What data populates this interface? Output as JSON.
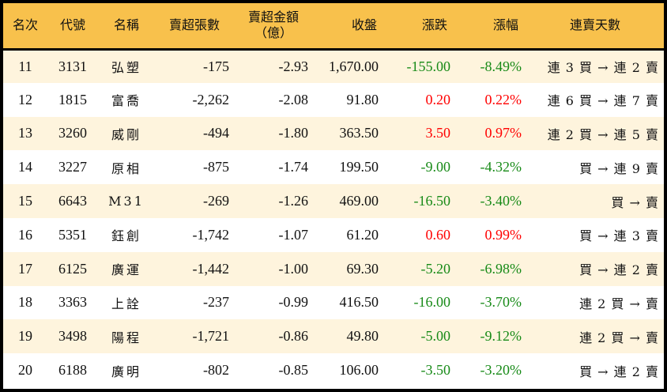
{
  "headers": {
    "rank": "名次",
    "code": "代號",
    "name": "名稱",
    "sell_sheets": "賣超張數",
    "sell_amount": "賣超金額",
    "sell_amount_unit": "（億）",
    "close": "收盤",
    "change": "漲跌",
    "change_pct": "漲幅",
    "streak": "連賣天數"
  },
  "colors": {
    "header_bg": "#F8C14C",
    "row_alt": "#FEF4DD",
    "up": "#FF0000",
    "down": "#178A17"
  },
  "rows": [
    {
      "rank": "11",
      "code": "3131",
      "name": "弘塑",
      "sheets": "-175",
      "amount": "-2.93",
      "close": "1,670.00",
      "change": "-155.00",
      "pct": "-8.49%",
      "dir": "down",
      "streak": "連 3 買 → 連 2 賣"
    },
    {
      "rank": "12",
      "code": "1815",
      "name": "富喬",
      "sheets": "-2,262",
      "amount": "-2.08",
      "close": "91.80",
      "change": "0.20",
      "pct": "0.22%",
      "dir": "up",
      "streak": "連 6 買 → 連 7 賣"
    },
    {
      "rank": "13",
      "code": "3260",
      "name": "威剛",
      "sheets": "-494",
      "amount": "-1.80",
      "close": "363.50",
      "change": "3.50",
      "pct": "0.97%",
      "dir": "up",
      "streak": "連 2 買 → 連 5 賣"
    },
    {
      "rank": "14",
      "code": "3227",
      "name": "原相",
      "sheets": "-875",
      "amount": "-1.74",
      "close": "199.50",
      "change": "-9.00",
      "pct": "-4.32%",
      "dir": "down",
      "streak": "買 → 連 9 賣"
    },
    {
      "rank": "15",
      "code": "6643",
      "name": "M31",
      "sheets": "-269",
      "amount": "-1.26",
      "close": "469.00",
      "change": "-16.50",
      "pct": "-3.40%",
      "dir": "down",
      "streak": "買 → 賣"
    },
    {
      "rank": "16",
      "code": "5351",
      "name": "鈺創",
      "sheets": "-1,742",
      "amount": "-1.07",
      "close": "61.20",
      "change": "0.60",
      "pct": "0.99%",
      "dir": "up",
      "streak": "買 → 連 3 賣"
    },
    {
      "rank": "17",
      "code": "6125",
      "name": "廣運",
      "sheets": "-1,442",
      "amount": "-1.00",
      "close": "69.30",
      "change": "-5.20",
      "pct": "-6.98%",
      "dir": "down",
      "streak": "買 → 連 2 賣"
    },
    {
      "rank": "18",
      "code": "3363",
      "name": "上詮",
      "sheets": "-237",
      "amount": "-0.99",
      "close": "416.50",
      "change": "-16.00",
      "pct": "-3.70%",
      "dir": "down",
      "streak": "連 2 買 → 賣"
    },
    {
      "rank": "19",
      "code": "3498",
      "name": "陽程",
      "sheets": "-1,721",
      "amount": "-0.86",
      "close": "49.80",
      "change": "-5.00",
      "pct": "-9.12%",
      "dir": "down",
      "streak": "連 2 買 → 賣"
    },
    {
      "rank": "20",
      "code": "6188",
      "name": "廣明",
      "sheets": "-802",
      "amount": "-0.85",
      "close": "106.00",
      "change": "-3.50",
      "pct": "-3.20%",
      "dir": "down",
      "streak": "買 → 連 2 賣"
    }
  ]
}
